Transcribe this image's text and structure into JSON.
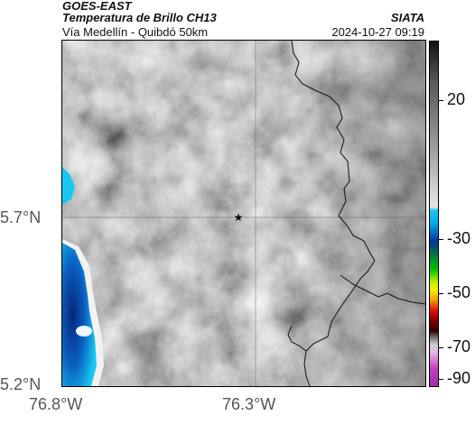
{
  "header": {
    "satellite": "GOES-EAST",
    "product": "Temperatura de Brillo CH13",
    "location": "Vía Medellín - Quibdó 50km",
    "organization": "SIATA",
    "datetime": "2024-10-27 09:19"
  },
  "axes": {
    "y_labels": [
      "5.7°N",
      "5.2°N"
    ],
    "x_labels": [
      "76.8°W",
      "76.3°W"
    ]
  },
  "colorbar": {
    "ticks": [
      "20",
      "-30",
      "-50",
      "-70",
      "-90"
    ],
    "colors": {
      "black": "#111111",
      "gray_light": "#e6e6e6",
      "cyan": "#00bfe8",
      "blue": "#0033a0",
      "green": "#00b000",
      "yellow": "#f0f000",
      "red": "#e01010",
      "dark_red": "#400000",
      "magenta": "#c040c0"
    }
  },
  "map": {
    "marker": "star-icon",
    "base_color": "#9a9a9a",
    "cold_color": "#0a50b0"
  }
}
